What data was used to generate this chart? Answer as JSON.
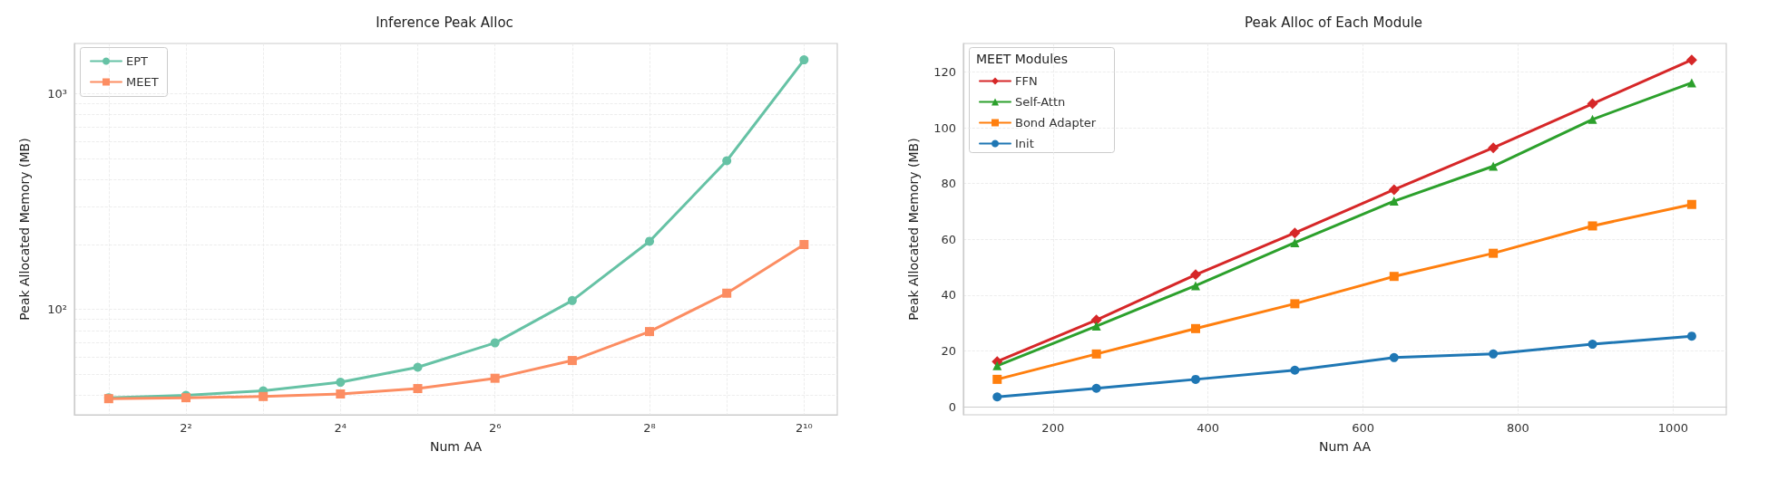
{
  "chart_data": [
    {
      "type": "line",
      "title": "Inference Peak Alloc",
      "xlabel": "Num AA",
      "ylabel": "Peak Allocated Memory (MB)",
      "x": [
        2,
        4,
        8,
        16,
        32,
        64,
        128,
        256,
        512,
        1024
      ],
      "series": [
        {
          "name": "EPT",
          "color": "#66c2a5",
          "marker": "circle",
          "values": [
            39,
            40,
            42,
            46,
            54,
            70,
            110,
            207,
            489,
            1436
          ]
        },
        {
          "name": "MEET",
          "color": "#fc8d62",
          "marker": "square",
          "values": [
            38.6,
            39,
            39.5,
            40.6,
            43,
            48,
            58,
            79,
            119,
            200
          ]
        }
      ],
      "log": "xy",
      "xlim": [
        1.47,
        1380
      ],
      "ylim": [
        32.5,
        1710
      ],
      "xticks": [
        {
          "value": 2,
          "label": null
        },
        {
          "value": 4,
          "label": "2²"
        },
        {
          "value": 8,
          "label": null
        },
        {
          "value": 16,
          "label": "2⁴"
        },
        {
          "value": 32,
          "label": null
        },
        {
          "value": 64,
          "label": "2⁶"
        },
        {
          "value": 128,
          "label": null
        },
        {
          "value": 256,
          "label": "2⁸"
        },
        {
          "value": 512,
          "label": null
        },
        {
          "value": 1024,
          "label": "2¹⁰"
        }
      ],
      "yticks": [
        {
          "value": 40,
          "label": null
        },
        {
          "value": 50,
          "label": null
        },
        {
          "value": 60,
          "label": null
        },
        {
          "value": 70,
          "label": null
        },
        {
          "value": 80,
          "label": null
        },
        {
          "value": 90,
          "label": null
        },
        {
          "value": 100,
          "label": "10²"
        },
        {
          "value": 200,
          "label": null
        },
        {
          "value": 300,
          "label": null
        },
        {
          "value": 400,
          "label": null
        },
        {
          "value": 500,
          "label": null
        },
        {
          "value": 600,
          "label": null
        },
        {
          "value": 700,
          "label": null
        },
        {
          "value": 800,
          "label": null
        },
        {
          "value": 900,
          "label": null
        },
        {
          "value": 1000,
          "label": "10³"
        }
      ],
      "grid": true,
      "legend": "top left",
      "line_style": "solid"
    },
    {
      "type": "line",
      "title": "Peak Alloc of Each Module",
      "xlabel": "Num AA",
      "ylabel": "Peak Allocated Memory (MB)",
      "legend_title": "MEET Modules",
      "x": [
        128,
        256,
        384,
        512,
        640,
        768,
        896,
        1024
      ],
      "series": [
        {
          "name": "FFN",
          "color": "#d62728",
          "marker": "diamond",
          "values": [
            16.2,
            31.1,
            47.3,
            62.3,
            77.8,
            92.8,
            108.6,
            124.3
          ]
        },
        {
          "name": "Self-Attn",
          "color": "#2ca02c",
          "marker": "triangle",
          "values": [
            14.7,
            28.9,
            43.4,
            58.8,
            73.7,
            86.2,
            103.0,
            116.1
          ]
        },
        {
          "name": "Bond Adapter",
          "color": "#ff7f0e",
          "marker": "square",
          "values": [
            9.8,
            18.9,
            28.0,
            36.9,
            46.7,
            55.0,
            64.8,
            72.5
          ]
        },
        {
          "name": "Init",
          "color": "#1f77b4",
          "marker": "circle",
          "values": [
            3.5,
            6.6,
            9.8,
            13.1,
            17.6,
            18.9,
            22.4,
            25.3
          ]
        }
      ],
      "xlim": [
        84.4,
        1068.6
      ],
      "ylim": [
        -2.9,
        130.2
      ],
      "xticks": [
        200,
        400,
        600,
        800,
        1000
      ],
      "yticks": [
        0,
        20,
        40,
        60,
        80,
        100,
        120
      ],
      "grid": true,
      "legend": "top left",
      "line_style": "solid"
    }
  ]
}
